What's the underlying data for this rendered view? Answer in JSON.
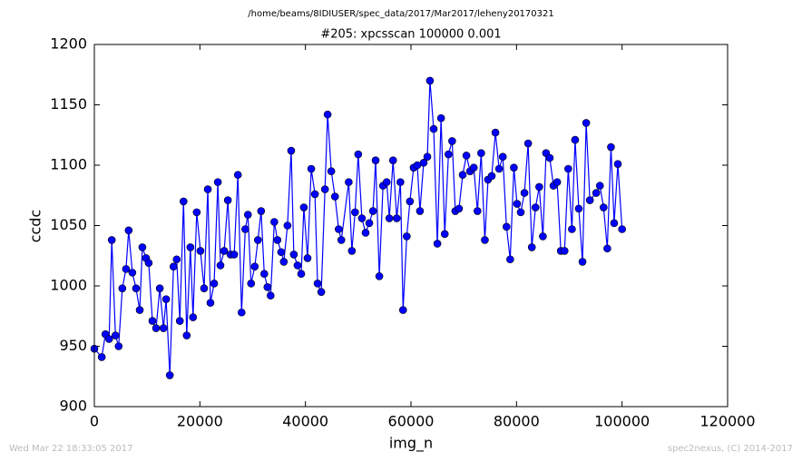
{
  "chart_data": {
    "type": "line",
    "suptitle": "/home/beams/8IDIUSER/spec_data/2017/Mar2017/leheny20170321",
    "title": "#205: xpcsscan 100000 0.001",
    "xlabel": "img_n",
    "ylabel": "ccdc",
    "footer_left": "Wed Mar 22 18:33:05 2017",
    "footer_right": "spec2nexus, (C) 2014-2017",
    "xlim": [
      0,
      120000
    ],
    "xticks": [
      0,
      20000,
      40000,
      60000,
      80000,
      100000,
      120000
    ],
    "ylim": [
      900,
      1200
    ],
    "yticks": [
      900,
      950,
      1000,
      1050,
      1100,
      1150,
      1200
    ],
    "grid": false,
    "x": [
      0,
      1400,
      2100,
      2800,
      3300,
      4000,
      4600,
      5300,
      6000,
      6500,
      7200,
      7900,
      8600,
      9100,
      9800,
      10300,
      11000,
      11700,
      12400,
      13100,
      13600,
      14300,
      15000,
      15600,
      16200,
      16900,
      17500,
      18200,
      18700,
      19400,
      20100,
      20800,
      21500,
      22000,
      22700,
      23400,
      23900,
      24600,
      25300,
      25800,
      26500,
      27200,
      27900,
      28600,
      29100,
      29700,
      30400,
      31000,
      31600,
      32200,
      32800,
      33400,
      34100,
      34700,
      35400,
      35900,
      36600,
      37300,
      37800,
      38500,
      39200,
      39700,
      40400,
      41100,
      41800,
      42300,
      43000,
      43700,
      44200,
      44900,
      45600,
      46300,
      46800,
      48200,
      48800,
      49400,
      50000,
      50700,
      51400,
      52100,
      52800,
      53300,
      54000,
      54700,
      55400,
      55900,
      56600,
      57300,
      58000,
      58500,
      59200,
      59800,
      60500,
      61200,
      61700,
      62400,
      63100,
      63600,
      64300,
      65000,
      65700,
      66400,
      67100,
      67800,
      68400,
      69100,
      69800,
      70500,
      71200,
      71900,
      72600,
      73300,
      74000,
      74600,
      75300,
      76000,
      76700,
      77400,
      78100,
      78800,
      79500,
      80100,
      80800,
      81500,
      82200,
      82900,
      83600,
      84300,
      85000,
      85600,
      86300,
      87000,
      87700,
      88400,
      89100,
      89800,
      90500,
      91100,
      91800,
      92500,
      93200,
      93900,
      95100,
      95800,
      96500,
      97200,
      97900,
      98500,
      99200,
      100000
    ],
    "series": [
      {
        "color": "#0000ff",
        "values": [
          948,
          941,
          960,
          956,
          1038,
          959,
          950,
          998,
          1014,
          1046,
          1011,
          998,
          980,
          1032,
          1023,
          1019,
          971,
          965,
          998,
          965,
          989,
          926,
          1016,
          1022,
          971,
          1070,
          959,
          1032,
          974,
          1061,
          1029,
          998,
          1080,
          986,
          1002,
          1086,
          1017,
          1029,
          1071,
          1026,
          1026,
          1092,
          978,
          1047,
          1059,
          1002,
          1016,
          1038,
          1062,
          1010,
          999,
          992,
          1053,
          1038,
          1028,
          1020,
          1050,
          1112,
          1026,
          1017,
          1010,
          1065,
          1023,
          1097,
          1076,
          1002,
          995,
          1080,
          1142,
          1095,
          1074,
          1047,
          1038,
          1086,
          1029,
          1061,
          1109,
          1056,
          1044,
          1052,
          1062,
          1104,
          1008,
          1083,
          1086,
          1056,
          1104,
          1056,
          1086,
          980,
          1041,
          1070,
          1098,
          1100,
          1062,
          1102,
          1107,
          1170,
          1130,
          1035,
          1139,
          1043,
          1109,
          1120,
          1062,
          1064,
          1092,
          1108,
          1095,
          1098,
          1062,
          1110,
          1038,
          1088,
          1091,
          1127,
          1097,
          1107,
          1049,
          1022,
          1098,
          1068,
          1061,
          1077,
          1118,
          1032,
          1065,
          1082,
          1041,
          1110,
          1106,
          1083,
          1086,
          1029,
          1029,
          1097,
          1047,
          1121,
          1064,
          1020,
          1135,
          1071,
          1077,
          1083,
          1065,
          1031,
          1115,
          1052,
          1101,
          1047
        ]
      }
    ]
  }
}
